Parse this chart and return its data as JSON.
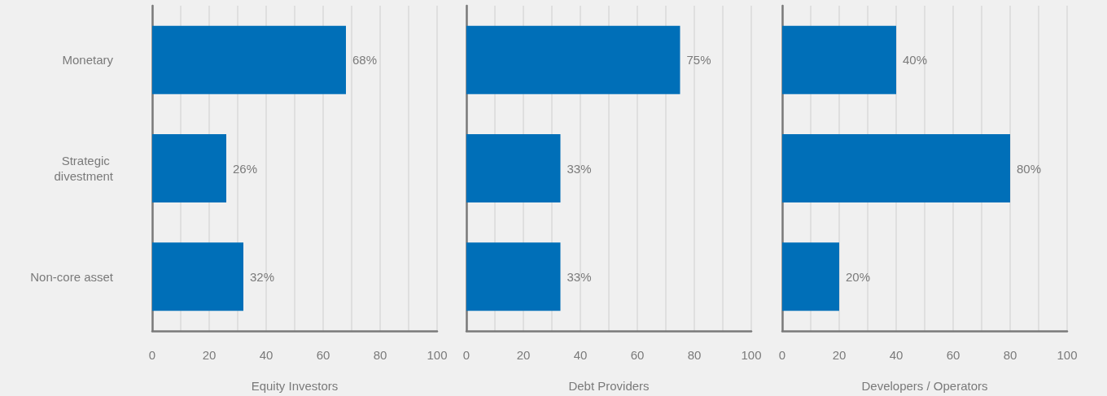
{
  "chart_data": [
    {
      "type": "bar",
      "orientation": "horizontal",
      "categories": [
        "Monetary",
        "Strategic divestment",
        "Non-core asset"
      ],
      "values": [
        68,
        26,
        32
      ],
      "value_labels": [
        "68%",
        "26%",
        "32%"
      ],
      "color": "#006fb8",
      "xlim": [
        0,
        100
      ],
      "xticks": [
        0,
        {
          "value": 10,
          "label": null
        },
        20,
        {
          "value": 30,
          "label": null
        },
        40,
        {
          "value": 50,
          "label": null
        },
        60,
        {
          "value": 70,
          "label": null
        },
        80,
        {
          "value": 90,
          "label": null
        },
        100
      ],
      "xlabel": "Equity Investors",
      "grid": "x"
    },
    {
      "type": "bar",
      "orientation": "horizontal",
      "categories": [
        "Monetary",
        "Strategic divestment",
        "Non-core asset"
      ],
      "values": [
        75,
        33,
        33
      ],
      "value_labels": [
        "75%",
        "33%",
        "33%"
      ],
      "color": "#006fb8",
      "xlim": [
        0,
        100
      ],
      "xticks": [
        0,
        {
          "value": 10,
          "label": null
        },
        20,
        {
          "value": 30,
          "label": null
        },
        40,
        {
          "value": 50,
          "label": null
        },
        60,
        {
          "value": 70,
          "label": null
        },
        80,
        {
          "value": 90,
          "label": null
        },
        100
      ],
      "xlabel": "Debt Providers",
      "grid": "x",
      "tick_labels": "x"
    },
    {
      "type": "bar",
      "orientation": "horizontal",
      "categories": [
        "Monetary",
        "Strategic divestment",
        "Non-core asset"
      ],
      "values": [
        40,
        80,
        20
      ],
      "value_labels": [
        "40%",
        "80%",
        "20%"
      ],
      "color": "#006fb8",
      "xlim": [
        0,
        100
      ],
      "xticks": [
        0,
        {
          "value": 10,
          "label": null
        },
        20,
        {
          "value": 30,
          "label": null
        },
        40,
        {
          "value": 50,
          "label": null
        },
        60,
        {
          "value": 70,
          "label": null
        },
        80,
        {
          "value": 90,
          "label": null
        },
        100
      ],
      "xlabel": "Developers / Operators",
      "grid": "x",
      "tick_labels": "x"
    }
  ]
}
